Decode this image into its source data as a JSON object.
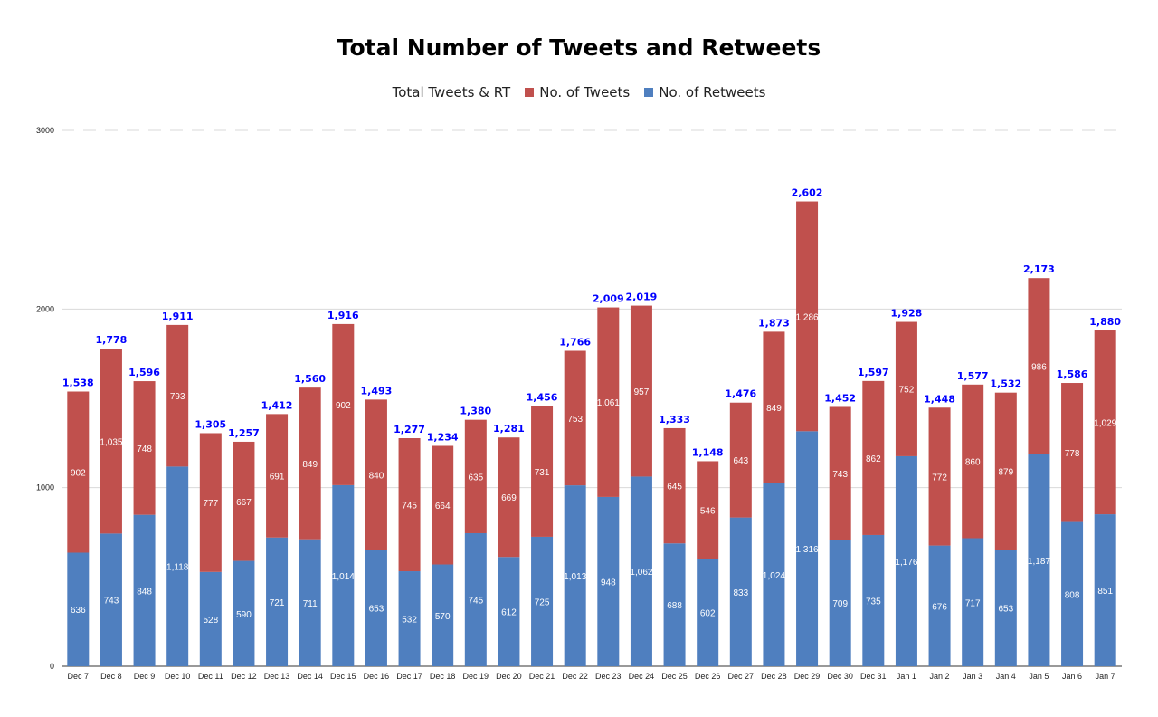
{
  "chart_data": {
    "type": "bar",
    "stacked": true,
    "title": "Total Number of Tweets and Retweets",
    "categories": [
      "Dec 7",
      "Dec 8",
      "Dec 9",
      "Dec 10",
      "Dec 11",
      "Dec 12",
      "Dec 13",
      "Dec 14",
      "Dec 15",
      "Dec 16",
      "Dec 17",
      "Dec 18",
      "Dec 19",
      "Dec 20",
      "Dec 21",
      "Dec 22",
      "Dec 23",
      "Dec 24",
      "Dec 25",
      "Dec 26",
      "Dec 27",
      "Dec 28",
      "Dec 29",
      "Dec 30",
      "Dec 31",
      "Jan 1",
      "Jan 2",
      "Jan 3",
      "Jan 4",
      "Jan 5",
      "Jan 6",
      "Jan 7"
    ],
    "series": [
      {
        "name": "No. of Retweets",
        "color": "#4f7fbf",
        "values": [
          636,
          743,
          848,
          1118,
          528,
          590,
          721,
          711,
          1014,
          653,
          532,
          570,
          745,
          612,
          725,
          1013,
          948,
          1062,
          688,
          602,
          833,
          1024,
          1316,
          709,
          735,
          1176,
          676,
          717,
          653,
          1187,
          808,
          851
        ]
      },
      {
        "name": "No. of Tweets",
        "color": "#c0504d",
        "values": [
          902,
          1035,
          748,
          793,
          777,
          667,
          691,
          849,
          902,
          840,
          745,
          664,
          635,
          669,
          731,
          753,
          1061,
          957,
          645,
          546,
          643,
          849,
          1286,
          743,
          862,
          752,
          772,
          860,
          879,
          986,
          778,
          1029
        ]
      }
    ],
    "totals": {
      "name": "Total Tweets & RT",
      "labels": [
        "1,538",
        "1,778",
        "1,596",
        "1,911",
        "1,305",
        "1,257",
        "1,412",
        "1,560",
        "1,916",
        "1,493",
        "1,277",
        "1,234",
        "1,380",
        "1,281",
        "1,456",
        "1,766",
        "2,009",
        "2,019",
        "1,333",
        "1,148",
        "1,476",
        "1,873",
        "2,602",
        "1,452",
        "1,597",
        "1,928",
        "1,448",
        "1,577",
        "1,532",
        "2,173",
        "1,586",
        "1,880"
      ],
      "color": "#0000ff"
    },
    "retweet_labels": [
      "636",
      "743",
      "848",
      "1,118",
      "528",
      "590",
      "721",
      "711",
      "1,014",
      "653",
      "532",
      "570",
      "745",
      "612",
      "725",
      "1,013",
      "948",
      "1,062",
      "688",
      "602",
      "833",
      "1,024",
      "1,316",
      "709",
      "735",
      "1,176",
      "676",
      "717",
      "653",
      "1,187",
      "808",
      "851"
    ],
    "tweet_labels": [
      "902",
      "1,035",
      "748",
      "793",
      "777",
      "667",
      "691",
      "849",
      "902",
      "840",
      "745",
      "664",
      "635",
      "669",
      "731",
      "753",
      "1,061",
      "957",
      "645",
      "546",
      "643",
      "849",
      "1,286",
      "743",
      "862",
      "752",
      "772",
      "860",
      "879",
      "986",
      "778",
      "1,029"
    ],
    "y_ticks": [
      "0",
      "1000",
      "2000",
      "3000"
    ],
    "ylim": [
      0,
      3000
    ],
    "legend_position": "top-center",
    "grid": true
  }
}
